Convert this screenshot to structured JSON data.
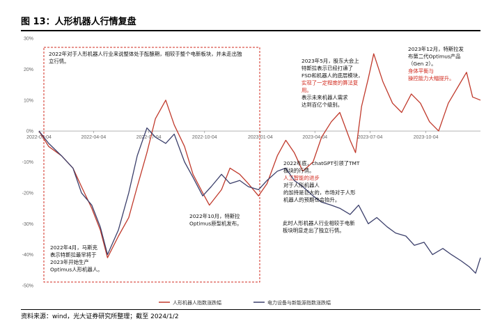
{
  "figure": {
    "title": "图 13：人形机器人行情复盘",
    "source": "资料来源：wind，光大证券研究所整理；截至 2024/1/2"
  },
  "chart_data": {
    "type": "line",
    "ylim": [
      -50,
      30
    ],
    "yticks": [
      "30%",
      "20%",
      "10%",
      "0%",
      "-10%",
      "-20%",
      "-30%",
      "-40%",
      "-50%"
    ],
    "xticks": [
      "2022-01-04",
      "2022-04-04",
      "2022-07-04",
      "2022-10-04",
      "2023-01-04",
      "2023-04-04",
      "2023-07-04",
      "2023-10-04"
    ],
    "xrange": [
      "2022-01-04",
      "2024-01-02"
    ],
    "grid": false,
    "legend_position": "bottom-center",
    "series": [
      {
        "name": "人形机器人指数涨跌幅",
        "color": "#c0392b",
        "points": [
          [
            "2022-01-04",
            0
          ],
          [
            "2022-01-20",
            -5
          ],
          [
            "2022-02-10",
            -8
          ],
          [
            "2022-03-01",
            -12
          ],
          [
            "2022-03-15",
            -18
          ],
          [
            "2022-04-01",
            -25
          ],
          [
            "2022-04-15",
            -32
          ],
          [
            "2022-04-27",
            -41
          ],
          [
            "2022-05-15",
            -34
          ],
          [
            "2022-06-01",
            -28
          ],
          [
            "2022-06-15",
            -18
          ],
          [
            "2022-07-01",
            -7
          ],
          [
            "2022-07-15",
            4
          ],
          [
            "2022-08-01",
            10
          ],
          [
            "2022-08-15",
            2
          ],
          [
            "2022-09-01",
            -5
          ],
          [
            "2022-09-15",
            -14
          ],
          [
            "2022-10-01",
            -20
          ],
          [
            "2022-10-12",
            -24
          ],
          [
            "2022-11-01",
            -19
          ],
          [
            "2022-11-15",
            -12
          ],
          [
            "2022-12-01",
            -14
          ],
          [
            "2022-12-15",
            -17
          ],
          [
            "2023-01-01",
            -21
          ],
          [
            "2023-01-15",
            -17
          ],
          [
            "2023-02-01",
            -8
          ],
          [
            "2023-02-15",
            -3
          ],
          [
            "2023-03-01",
            -7
          ],
          [
            "2023-03-15",
            -13
          ],
          [
            "2023-04-01",
            -10
          ],
          [
            "2023-04-15",
            -2
          ],
          [
            "2023-05-01",
            3
          ],
          [
            "2023-05-15",
            6
          ],
          [
            "2023-06-01",
            -3
          ],
          [
            "2023-06-10",
            -7
          ],
          [
            "2023-06-20",
            8
          ],
          [
            "2023-07-01",
            17
          ],
          [
            "2023-07-10",
            25
          ],
          [
            "2023-07-25",
            16
          ],
          [
            "2023-08-10",
            9
          ],
          [
            "2023-08-25",
            6
          ],
          [
            "2023-09-10",
            12
          ],
          [
            "2023-09-25",
            9
          ],
          [
            "2023-10-10",
            3
          ],
          [
            "2023-10-25",
            0
          ],
          [
            "2023-11-10",
            9
          ],
          [
            "2023-11-25",
            14
          ],
          [
            "2023-12-10",
            19
          ],
          [
            "2023-12-20",
            11
          ],
          [
            "2024-01-02",
            10
          ]
        ]
      },
      {
        "name": "电力设备与新能源指数涨跌幅",
        "color": "#3b3f6b",
        "points": [
          [
            "2022-01-04",
            0
          ],
          [
            "2022-01-20",
            -4
          ],
          [
            "2022-02-10",
            -8
          ],
          [
            "2022-03-01",
            -12
          ],
          [
            "2022-03-15",
            -20
          ],
          [
            "2022-04-01",
            -24
          ],
          [
            "2022-04-15",
            -31
          ],
          [
            "2022-04-27",
            -40
          ],
          [
            "2022-05-15",
            -32
          ],
          [
            "2022-06-01",
            -20
          ],
          [
            "2022-06-15",
            -8
          ],
          [
            "2022-07-01",
            1
          ],
          [
            "2022-07-15",
            -2
          ],
          [
            "2022-08-01",
            -4
          ],
          [
            "2022-08-15",
            -1
          ],
          [
            "2022-09-01",
            -10
          ],
          [
            "2022-09-15",
            -15
          ],
          [
            "2022-10-01",
            -21
          ],
          [
            "2022-10-15",
            -18
          ],
          [
            "2022-11-01",
            -14
          ],
          [
            "2022-11-15",
            -17
          ],
          [
            "2022-12-01",
            -16
          ],
          [
            "2022-12-15",
            -18
          ],
          [
            "2023-01-01",
            -19
          ],
          [
            "2023-01-15",
            -16
          ],
          [
            "2023-02-01",
            -13
          ],
          [
            "2023-02-15",
            -12
          ],
          [
            "2023-03-01",
            -16
          ],
          [
            "2023-03-15",
            -18
          ],
          [
            "2023-04-01",
            -21
          ],
          [
            "2023-04-15",
            -23
          ],
          [
            "2023-05-01",
            -24
          ],
          [
            "2023-05-15",
            -25
          ],
          [
            "2023-06-01",
            -27
          ],
          [
            "2023-06-15",
            -24
          ],
          [
            "2023-07-01",
            -30
          ],
          [
            "2023-07-15",
            -28
          ],
          [
            "2023-08-01",
            -31
          ],
          [
            "2023-08-15",
            -33
          ],
          [
            "2023-09-01",
            -34
          ],
          [
            "2023-09-15",
            -37
          ],
          [
            "2023-10-01",
            -36
          ],
          [
            "2023-10-15",
            -40
          ],
          [
            "2023-11-01",
            -38
          ],
          [
            "2023-11-15",
            -40
          ],
          [
            "2023-12-01",
            -42
          ],
          [
            "2023-12-15",
            -44
          ],
          [
            "2023-12-25",
            -46
          ],
          [
            "2024-01-02",
            -41
          ]
        ]
      }
    ],
    "annotations": [
      {
        "lines": [
          "2022年对于人形机器人行业来说整体处于酝酿期，相较于整个电新板块，并未走出独",
          "立行情。"
        ]
      },
      {
        "lines": [
          "2022年4月，马斯克",
          "表示特斯拉最早将于",
          "2023年开始生产",
          "Optimus人形机器人。"
        ]
      },
      {
        "lines": [
          "2022年10月，特斯拉",
          "Optimus原型机发布。"
        ]
      },
      {
        "lines": [
          "2023年5月，股东大会上",
          "特斯拉表示已经打通了",
          "FSD和机器人的底层模块，"
        ],
        "red_lines": [
          "实现了一定程度的算法复",
          "用。"
        ],
        "tail_lines": [
          "表示未来机器人需求",
          "达到百亿个级别。"
        ]
      },
      {
        "lines": [
          "2023年12月，特斯拉发",
          "布第二代Optimus产品",
          "（Gen 2）。"
        ],
        "red_lines": [
          "身体平衡与",
          "操控能力大幅提升。"
        ]
      },
      {
        "lines": [
          "2022年底，chatGPT引领了TMT",
          "板块的行情。"
        ],
        "red_lines": [
          "人工智能的进步"
        ],
        "tail_lines": [
          "对于人形机器人",
          "的加持是巨大的，市场对于人形",
          "机器人的预期也会抬升。"
        ]
      },
      {
        "lines": [
          "此时人形机器人行业相较于电新",
          "板块明显走出了独立行情。"
        ]
      }
    ]
  }
}
